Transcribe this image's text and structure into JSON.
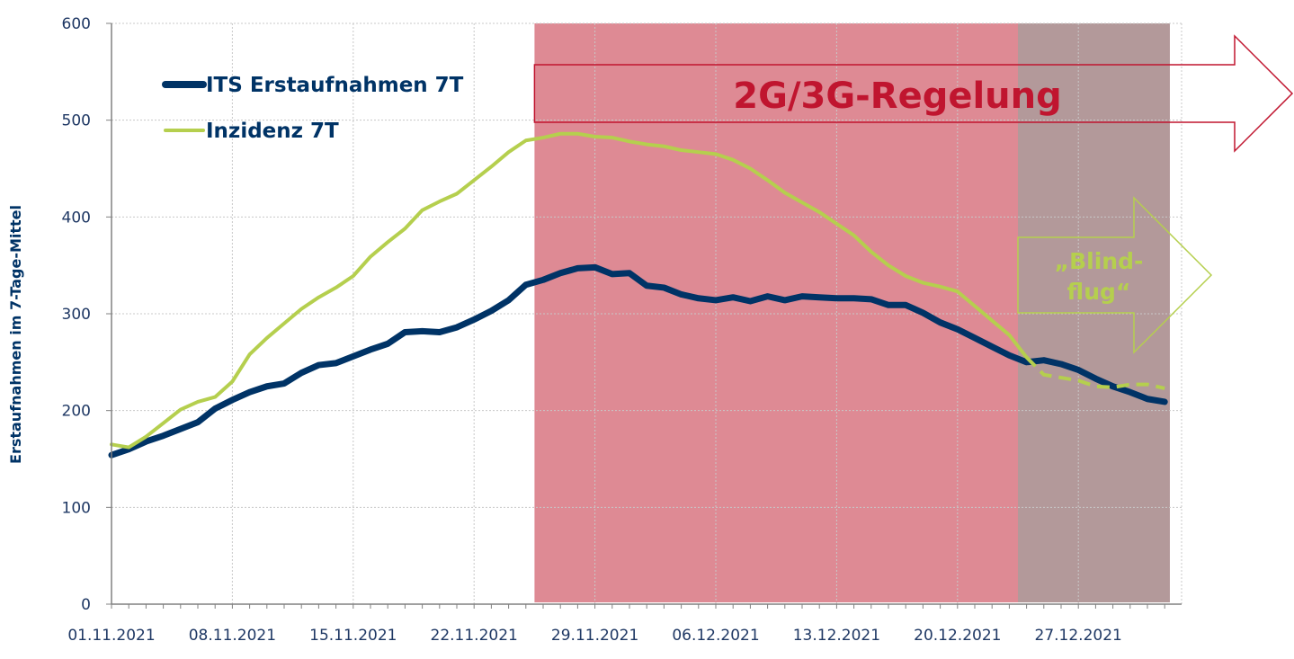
{
  "chart_data": {
    "type": "line",
    "ylabel": "Erstaufnahmen im 7-Tage-Mittel",
    "xlabel": "",
    "ylim": [
      0,
      600
    ],
    "yticks": [
      "0",
      "100",
      "200",
      "300",
      "400",
      "500",
      "600"
    ],
    "xrange": [
      0,
      55
    ],
    "xticks": [
      {
        "day": 0,
        "label": "01.11.2021"
      },
      {
        "day": 7,
        "label": "08.11.2021"
      },
      {
        "day": 14,
        "label": "15.11.2021"
      },
      {
        "day": 21,
        "label": "22.11.2021"
      },
      {
        "day": 28,
        "label": "29.11.2021"
      },
      {
        "day": 35,
        "label": "06.12.2021"
      },
      {
        "day": 42,
        "label": "13.12.2021"
      },
      {
        "day": 49,
        "label": "20.12.2021"
      },
      {
        "day": 56,
        "label": "27.12.2021"
      }
    ],
    "grid": true,
    "legend_position": "top-left",
    "series": [
      {
        "name": "ITS Erstaufnahmen 7T",
        "color": "#003366",
        "style": "solid",
        "values": [
          154,
          160,
          168,
          174,
          181,
          188,
          202,
          211,
          219,
          225,
          228,
          239,
          247,
          249,
          256,
          263,
          269,
          281,
          282,
          281,
          286,
          294,
          303,
          314,
          330,
          335,
          342,
          347,
          348,
          341,
          342,
          329,
          327,
          320,
          316,
          314,
          317,
          313,
          318,
          314,
          318,
          317,
          316,
          316,
          315,
          309,
          309,
          301,
          291,
          284,
          275,
          266,
          257,
          250,
          252,
          248,
          242,
          233,
          225,
          219,
          212,
          209
        ]
      },
      {
        "name": "Inzidenz 7T",
        "color": "#b5cf4e",
        "style": "solid-then-dashed",
        "dash_from_index": 53,
        "values": [
          165,
          162,
          173,
          187,
          201,
          209,
          214,
          230,
          258,
          275,
          290,
          305,
          317,
          327,
          339,
          359,
          374,
          388,
          407,
          416,
          424,
          438,
          452,
          467,
          479,
          482,
          486,
          486,
          483,
          482,
          478,
          475,
          473,
          469,
          467,
          465,
          459,
          450,
          438,
          425,
          415,
          405,
          393,
          381,
          364,
          350,
          339,
          332,
          328,
          323,
          308,
          293,
          278,
          255,
          237,
          234,
          231,
          225,
          224,
          227,
          227,
          223
        ]
      }
    ],
    "annotations": [
      {
        "label": "2G/3G-Regelung",
        "from_day": 24.5,
        "to_day": 52.5,
        "color": "#c0152f",
        "band_color": "#de8a94"
      },
      {
        "label_lines": [
          "„Blind-",
          "flug“"
        ],
        "from_day": 52.5,
        "to_day": 61.3,
        "color": "#b5cf4e",
        "band_color": "#b3999a"
      }
    ]
  }
}
